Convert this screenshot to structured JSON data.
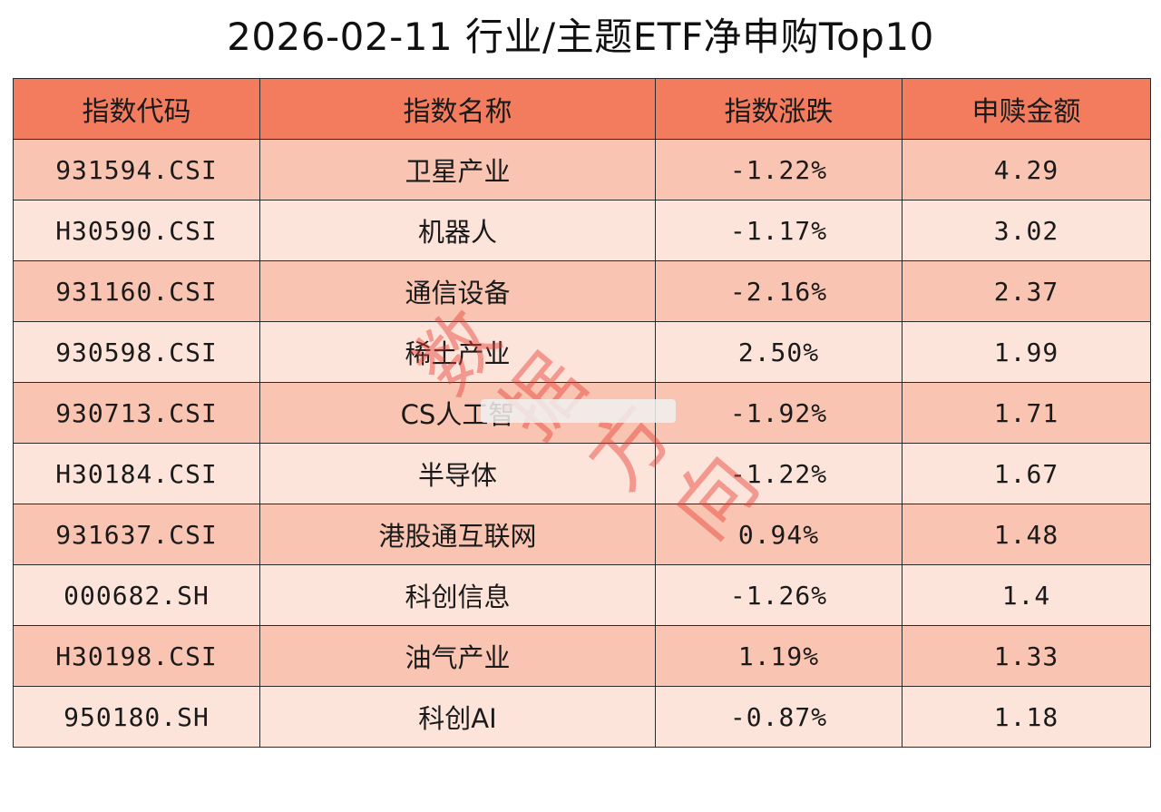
{
  "title": "2026-02-11 行业/主题ETF净申购Top10",
  "table": {
    "headers": [
      "指数代码",
      "指数名称",
      "指数涨跌",
      "申赎金额"
    ],
    "rows": [
      [
        "931594.CSI",
        "卫星产业",
        "-1.22%",
        "4.29"
      ],
      [
        "H30590.CSI",
        "机器人",
        "-1.17%",
        "3.02"
      ],
      [
        "931160.CSI",
        "通信设备",
        "-2.16%",
        "2.37"
      ],
      [
        "930598.CSI",
        "稀土产业",
        "2.50%",
        "1.99"
      ],
      [
        "930713.CSI",
        "CS人工智",
        "-1.92%",
        "1.71"
      ],
      [
        "H30184.CSI",
        "半导体",
        "-1.22%",
        "1.67"
      ],
      [
        "931637.CSI",
        "港股通互联网",
        "0.94%",
        "1.48"
      ],
      [
        "000682.SH",
        "科创信息",
        "-1.26%",
        "1.4"
      ],
      [
        "H30198.CSI",
        "油气产业",
        "1.19%",
        "1.33"
      ],
      [
        "950180.SH",
        "科创AI",
        "-0.87%",
        "1.18"
      ]
    ]
  },
  "watermark": {
    "text": "数据方向"
  },
  "colors": {
    "header_bg": "#f47c5e",
    "row_odd_bg": "#f9c5b2",
    "row_even_bg": "#fde4da",
    "watermark": "#e63c32"
  }
}
